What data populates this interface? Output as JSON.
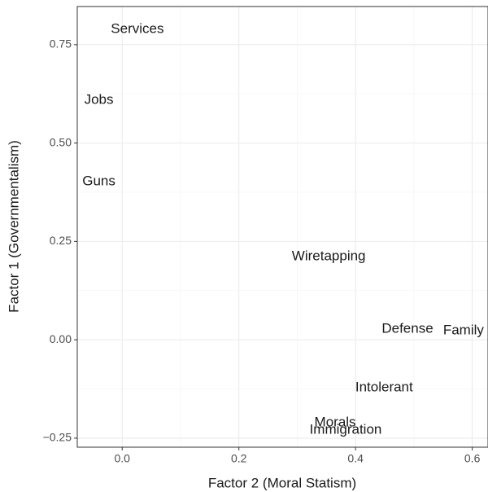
{
  "chart_data": {
    "type": "scatter",
    "x_label": "Factor 2 (Moral Statism)",
    "y_label": "Factor 1 (Governmentalism)",
    "point_labels": [
      "Services",
      "Jobs",
      "Guns",
      "Wiretapping",
      "Defense",
      "Family",
      "Intolerant",
      "Morals",
      "Immigration"
    ],
    "x": [
      0.026,
      -0.04,
      -0.04,
      0.354,
      0.489,
      0.585,
      0.449,
      0.365,
      0.383
    ],
    "values": [
      0.789,
      0.609,
      0.402,
      0.211,
      0.027,
      0.023,
      -0.122,
      -0.211,
      -0.23
    ],
    "xlim": [
      -0.077,
      0.627
    ],
    "ylim": [
      -0.273,
      0.847
    ],
    "xticks": [
      {
        "value": 0,
        "label": "0.0"
      },
      0.2,
      0.4,
      0.6
    ],
    "yticks": [
      {
        "value": -0.25,
        "label": "−0.25"
      },
      {
        "value": 0,
        "label": "0.00"
      },
      0.25,
      {
        "value": 0.5,
        "label": "0.50"
      },
      0.75
    ],
    "x_minor_ticks": [
      0.1,
      0.3,
      0.5
    ],
    "y_minor_ticks": [
      -0.125,
      0.125,
      0.375,
      0.625
    ],
    "grid": true
  }
}
